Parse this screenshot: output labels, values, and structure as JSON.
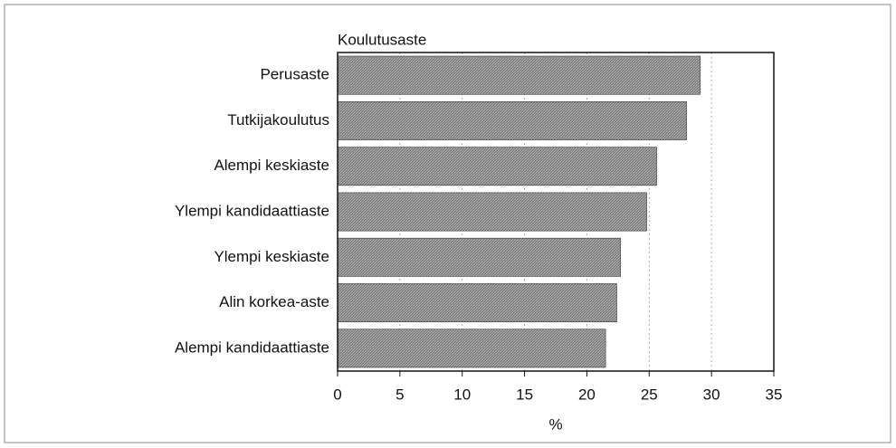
{
  "chart_data": {
    "type": "bar",
    "orientation": "horizontal",
    "title": "Koulutusaste",
    "x_label": "%",
    "categories": [
      "Perusaste",
      "Tutkijakoulutus",
      "Alempi keskiaste",
      "Ylempi kandidaattiaste",
      "Ylempi keskiaste",
      "Alin korkea-aste",
      "Alempi kandidaattiaste"
    ],
    "values": [
      29.1,
      28.0,
      25.6,
      24.8,
      22.7,
      22.4,
      21.5
    ],
    "color": "#7a7a7a",
    "xlim": [
      0,
      35
    ],
    "xticks": [
      0,
      5,
      10,
      15,
      20,
      25,
      30,
      35
    ],
    "grid": true
  }
}
